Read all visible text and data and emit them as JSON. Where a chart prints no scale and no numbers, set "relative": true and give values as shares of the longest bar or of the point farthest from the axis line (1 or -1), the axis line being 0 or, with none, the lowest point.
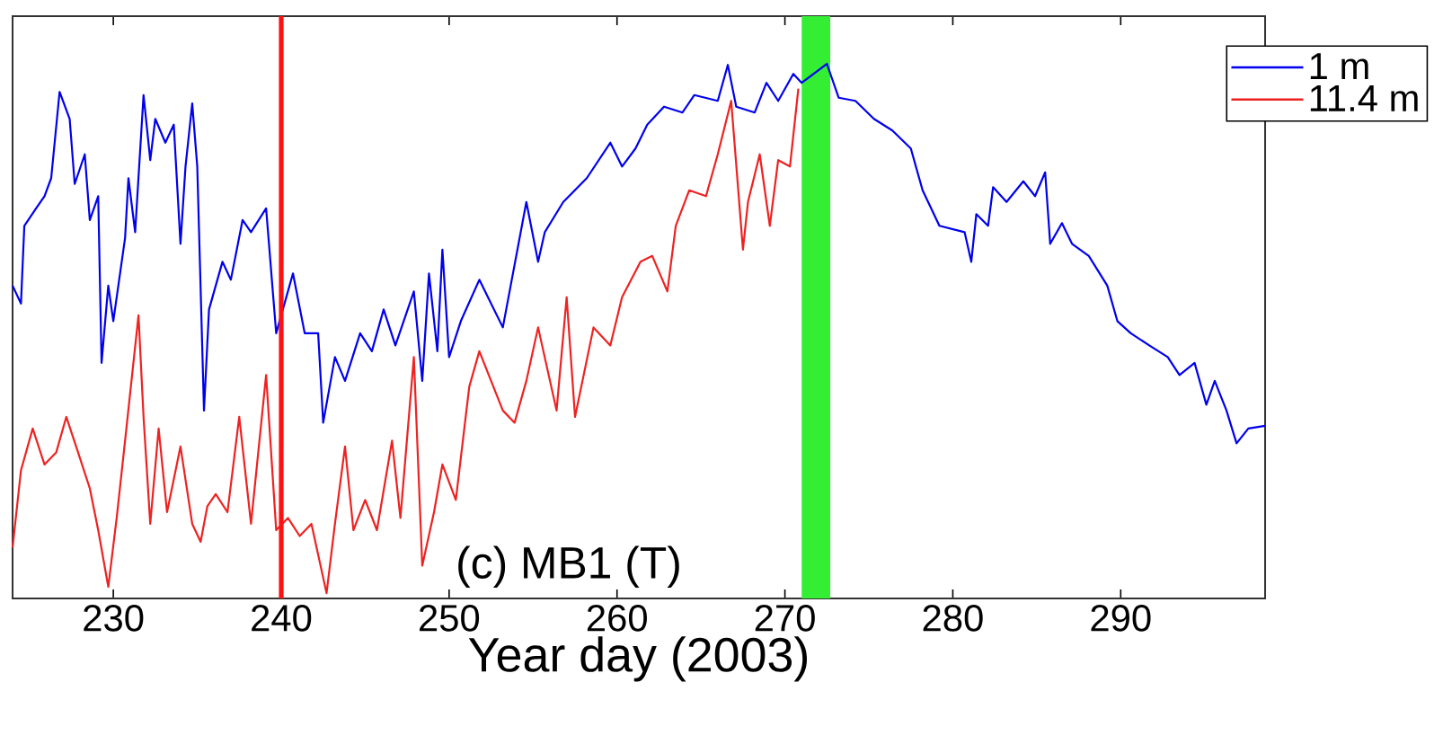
{
  "chart_data": {
    "type": "line",
    "relative": true,
    "xlabel": "Year day (2003)",
    "xlim": [
      224,
      298.6
    ],
    "xticks": [
      230,
      240,
      250,
      260,
      270,
      280,
      290
    ],
    "legend": "top right",
    "grid": false,
    "marker": "none",
    "line_style": "solid",
    "annotations": [
      "(c) MB1 (T)"
    ],
    "ref_lines": [
      {
        "axis": "x",
        "value": 240,
        "color": "#ff1111"
      }
    ],
    "bands": [
      {
        "axis": "x",
        "from": 271,
        "to": 272.7,
        "color": "#33ee33"
      }
    ],
    "series": [
      {
        "name": "1 m",
        "color": "#0000ee",
        "x": [
          224.0,
          224.5,
          224.7,
          225.4,
          225.9,
          226.3,
          226.8,
          227.4,
          227.7,
          228.3,
          228.6,
          229.1,
          229.3,
          229.7,
          230.0,
          230.7,
          230.9,
          231.3,
          231.8,
          232.2,
          232.5,
          233.1,
          233.6,
          234.0,
          234.3,
          234.7,
          235.0,
          235.4,
          235.7,
          236.5,
          237.0,
          237.7,
          238.2,
          239.1,
          239.7,
          240.7,
          241.4,
          242.2,
          242.5,
          243.2,
          243.8,
          244.7,
          245.4,
          246.1,
          246.8,
          247.9,
          248.4,
          248.8,
          249.3,
          249.6,
          250.0,
          250.7,
          251.8,
          253.2,
          254.6,
          255.3,
          255.7,
          256.8,
          258.2,
          259.6,
          260.3,
          261.1,
          261.8,
          262.8,
          263.9,
          264.6,
          266.0,
          266.6,
          267.1,
          268.2,
          268.9,
          269.6,
          270.5,
          271.0,
          272.5,
          273.2,
          274.2,
          275.3,
          276.4,
          277.5,
          278.2,
          279.2,
          280.7,
          281.1,
          281.4,
          282.1,
          282.4,
          283.2,
          284.2,
          284.9,
          285.5,
          285.8,
          286.5,
          287.1,
          288.1,
          289.2,
          289.8,
          290.6,
          291.7,
          292.8,
          293.5,
          294.4,
          295.1,
          295.6,
          296.3,
          296.9,
          297.6,
          298.6
        ],
        "values": [
          0.581,
          0.547,
          0.694,
          0.727,
          0.75,
          0.784,
          0.947,
          0.896,
          0.773,
          0.829,
          0.705,
          0.75,
          0.435,
          0.581,
          0.514,
          0.671,
          0.784,
          0.682,
          0.941,
          0.818,
          0.896,
          0.851,
          0.885,
          0.66,
          0.806,
          0.925,
          0.806,
          0.345,
          0.536,
          0.626,
          0.592,
          0.705,
          0.682,
          0.727,
          0.491,
          0.604,
          0.491,
          0.491,
          0.322,
          0.446,
          0.401,
          0.491,
          0.457,
          0.536,
          0.468,
          0.57,
          0.401,
          0.604,
          0.457,
          0.649,
          0.446,
          0.514,
          0.592,
          0.502,
          0.739,
          0.626,
          0.682,
          0.739,
          0.784,
          0.851,
          0.806,
          0.84,
          0.885,
          0.919,
          0.908,
          0.941,
          0.93,
          0.998,
          0.919,
          0.908,
          0.964,
          0.93,
          0.981,
          0.964,
          1.0,
          0.936,
          0.93,
          0.896,
          0.874,
          0.84,
          0.761,
          0.694,
          0.682,
          0.626,
          0.716,
          0.694,
          0.767,
          0.739,
          0.778,
          0.75,
          0.795,
          0.66,
          0.699,
          0.66,
          0.637,
          0.581,
          0.514,
          0.491,
          0.468,
          0.446,
          0.412,
          0.435,
          0.356,
          0.401,
          0.345,
          0.283,
          0.311,
          0.316
        ]
      },
      {
        "name": "11.4 m",
        "color": "#ee2222",
        "x": [
          224.0,
          224.5,
          225.2,
          225.9,
          226.6,
          227.2,
          227.9,
          228.6,
          229.1,
          229.7,
          230.2,
          230.7,
          231.5,
          231.8,
          232.2,
          232.7,
          233.2,
          234.0,
          234.7,
          235.2,
          235.6,
          236.1,
          236.8,
          237.5,
          238.2,
          239.1,
          239.7,
          240.4,
          241.1,
          241.8,
          242.7,
          243.2,
          243.8,
          244.3,
          245.0,
          245.7,
          246.6,
          247.1,
          247.9,
          248.4,
          249.1,
          249.6,
          250.4,
          251.2,
          251.8,
          253.2,
          253.9,
          254.6,
          255.3,
          256.4,
          257.0,
          257.5,
          258.6,
          259.6,
          260.3,
          261.4,
          262.1,
          263.0,
          263.5,
          264.3,
          265.3,
          266.0,
          266.8,
          267.5,
          267.8,
          268.5,
          269.1,
          269.6,
          270.3,
          270.8
        ],
        "values": [
          0.086,
          0.232,
          0.311,
          0.243,
          0.266,
          0.333,
          0.266,
          0.198,
          0.119,
          0.012,
          0.142,
          0.288,
          0.525,
          0.333,
          0.131,
          0.311,
          0.153,
          0.277,
          0.131,
          0.097,
          0.164,
          0.187,
          0.153,
          0.333,
          0.131,
          0.412,
          0.119,
          0.142,
          0.108,
          0.131,
          0.0,
          0.131,
          0.277,
          0.119,
          0.176,
          0.119,
          0.288,
          0.142,
          0.446,
          0.052,
          0.153,
          0.243,
          0.176,
          0.39,
          0.457,
          0.345,
          0.322,
          0.401,
          0.502,
          0.345,
          0.559,
          0.333,
          0.502,
          0.468,
          0.559,
          0.626,
          0.637,
          0.57,
          0.694,
          0.761,
          0.75,
          0.829,
          0.93,
          0.649,
          0.739,
          0.829,
          0.694,
          0.818,
          0.806,
          0.953
        ]
      }
    ]
  }
}
